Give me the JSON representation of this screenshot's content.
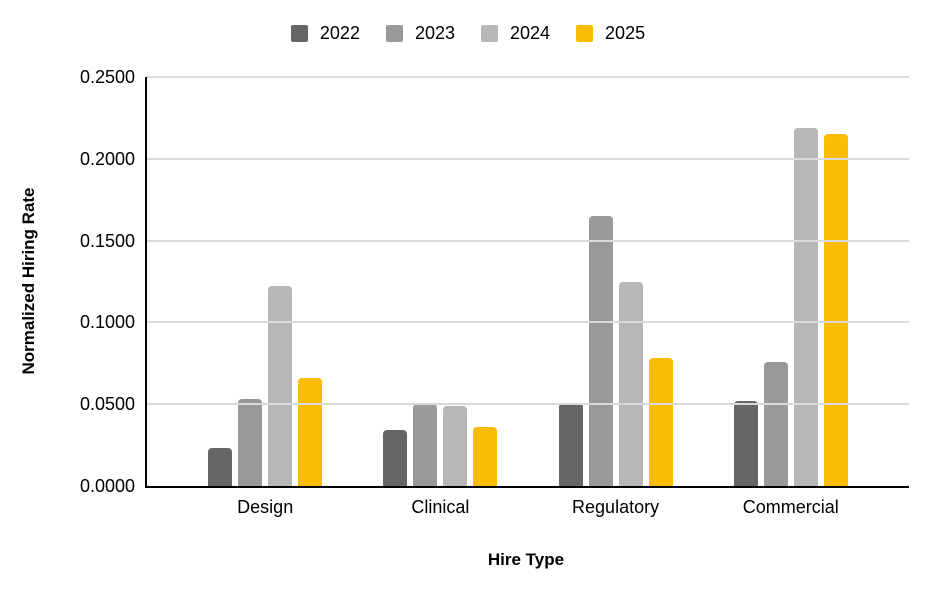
{
  "chart_data": {
    "type": "bar",
    "title": "",
    "xlabel": "Hire Type",
    "ylabel": "Normalized Hiring Rate",
    "categories": [
      "Design",
      "Clinical",
      "Regulatory",
      "Commercial"
    ],
    "series": [
      {
        "name": "2022",
        "color": "#666666",
        "values": [
          0.023,
          0.034,
          0.051,
          0.052
        ]
      },
      {
        "name": "2023",
        "color": "#999999",
        "values": [
          0.053,
          0.05,
          0.165,
          0.076
        ]
      },
      {
        "name": "2024",
        "color": "#b7b7b7",
        "values": [
          0.122,
          0.049,
          0.125,
          0.219
        ]
      },
      {
        "name": "2025",
        "color": "#fbbc04",
        "values": [
          0.066,
          0.036,
          0.078,
          0.215
        ]
      }
    ],
    "ylim": [
      0,
      0.25
    ],
    "ytick_labels": [
      "0.0000",
      "0.0500",
      "0.1000",
      "0.1500",
      "0.2000",
      "0.2500"
    ],
    "grid": true,
    "gridline_color": "#dadada",
    "axis_color": "#000000",
    "background_color": "#ffffff",
    "legend_position": "top"
  }
}
